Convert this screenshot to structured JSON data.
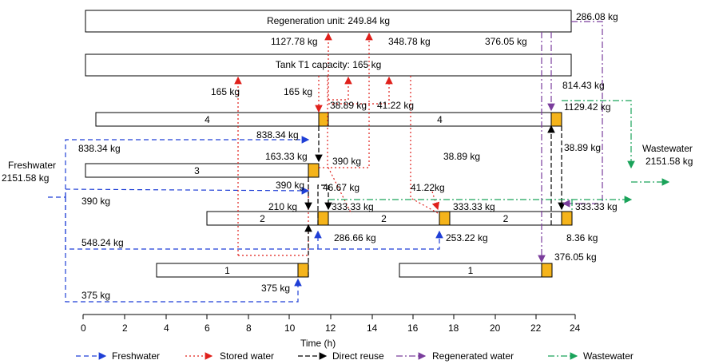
{
  "units": {
    "regeneration_unit": "Regeneration unit: 249.84 kg",
    "tank": "Tank T1 capacity: 165 kg"
  },
  "operations": {
    "op4_a": "4",
    "op4_b": "4",
    "op3": "3",
    "op2_a": "2",
    "op2_b": "2",
    "op2_c": "2",
    "op1_a": "1",
    "op1_b": "1"
  },
  "streams": {
    "l_286_08": "286.08 kg",
    "l_1127_78": "1127.78 kg",
    "l_348_78": "348.78 kg",
    "l_376_05_top": "376.05 kg",
    "l_165_left": "165 kg",
    "l_165_mid": "165 kg",
    "l_814_43": "814.43 kg",
    "l_38_89_a": "38.89 kg",
    "l_41_22_a": "41.22 kg",
    "l_1129_42": "1129.42 kg",
    "l_838_34_a": "838.34 kg",
    "l_838_34_b": "838.34 kg",
    "l_38_89_right": "38.89 kg",
    "l_163_33": "163.33 kg",
    "l_390_a": "390 kg",
    "l_38_89_mid": "38.89 kg",
    "l_390_b": "390 kg",
    "l_46_67": "46.67 kg",
    "l_41_22_b": "41.22kg",
    "l_390_c": "390 kg",
    "l_210": "210 kg",
    "l_333_33_a": "333.33 kg",
    "l_333_33_b": "333.33 kg",
    "l_333_33_c": "333.33 kg",
    "l_286_66": "286.66 kg",
    "l_253_22": "253.22 kg",
    "l_548_24": "548.24 kg",
    "l_8_36": "8.36 kg",
    "l_376_05_b": "376.05 kg",
    "l_375_a": "375 kg",
    "l_375_b": "375 kg",
    "freshwater_1": "Freshwater",
    "freshwater_2": "2151.58 kg",
    "wastewater_1": "Wastewater",
    "wastewater_2": "2151.58 kg"
  },
  "axis": {
    "title": "Time (h)",
    "ticks": [
      "0",
      "2",
      "4",
      "6",
      "8",
      "10",
      "12",
      "14",
      "16",
      "18",
      "20",
      "22",
      "24"
    ]
  },
  "legend": {
    "freshwater": "Freshwater",
    "stored": "Stored water",
    "direct": "Direct reuse",
    "regenerated": "Regenerated water",
    "wastewater": "Wastewater"
  },
  "colors": {
    "freshwater": "#1f3fd6",
    "stored": "#e0201b",
    "direct": "#000000",
    "regenerated": "#7a3d9c",
    "wastewater": "#1aa35a",
    "regen_box_fill": "#f5b41b"
  }
}
